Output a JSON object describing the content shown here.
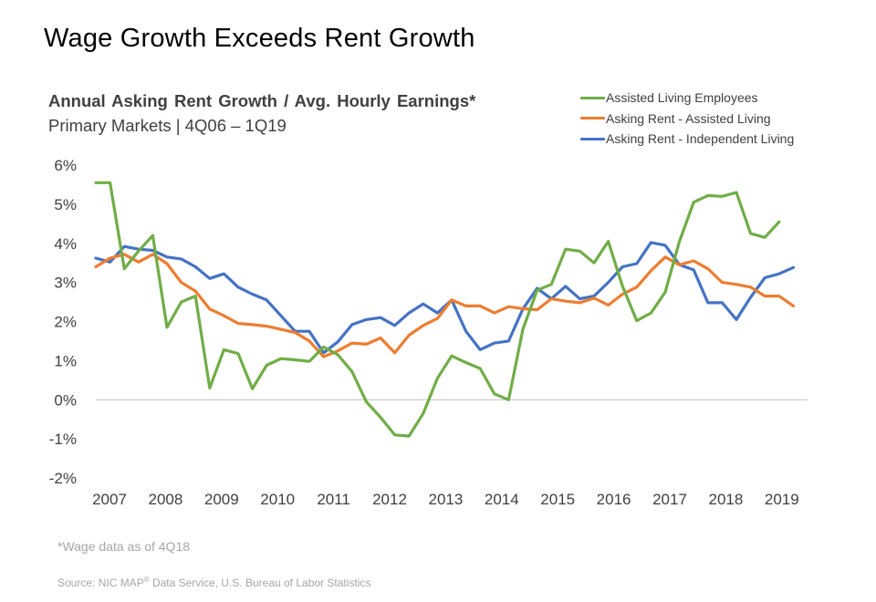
{
  "header": {
    "title": "Wage Growth Exceeds Rent Growth"
  },
  "chart_data": {
    "type": "line",
    "title": "Annual Asking Rent Growth / Avg. Hourly Earnings*",
    "subtitle": "Primary Markets | 4Q06 – 1Q19",
    "xlabel": "",
    "ylabel": "",
    "ylim": [
      -2,
      6
    ],
    "y_ticks": [
      "6%",
      "5%",
      "4%",
      "3%",
      "2%",
      "1%",
      "0%",
      "-1%",
      "-2%"
    ],
    "x_ticks": [
      "2007",
      "2008",
      "2009",
      "2010",
      "2011",
      "2012",
      "2013",
      "2014",
      "2015",
      "2016",
      "2017",
      "2018",
      "2019"
    ],
    "x_start": "4Q06",
    "legend_position": "top-right",
    "grid": false,
    "series": [
      {
        "name": "Assisted Living Employees",
        "color": "#70ad47",
        "values": [
          5.55,
          5.55,
          3.35,
          3.8,
          4.2,
          1.85,
          2.5,
          2.65,
          0.3,
          1.28,
          1.18,
          0.28,
          0.88,
          1.05,
          1.02,
          0.98,
          1.35,
          1.15,
          0.72,
          -0.05,
          -0.45,
          -0.9,
          -0.93,
          -0.35,
          0.55,
          1.12,
          0.95,
          0.8,
          0.15,
          0.0,
          1.8,
          2.8,
          2.95,
          3.85,
          3.8,
          3.5,
          4.05,
          2.9,
          2.02,
          2.22,
          2.75,
          4.05,
          5.05,
          5.22,
          5.2,
          5.3,
          4.25,
          4.15,
          4.55
        ]
      },
      {
        "name": "Asking Rent - Assisted Living",
        "color": "#ed7d31",
        "values": [
          3.4,
          3.62,
          3.72,
          3.52,
          3.72,
          3.48,
          3.0,
          2.78,
          2.32,
          2.15,
          1.95,
          1.92,
          1.88,
          1.8,
          1.72,
          1.5,
          1.1,
          1.25,
          1.45,
          1.42,
          1.58,
          1.2,
          1.65,
          1.9,
          2.08,
          2.55,
          2.4,
          2.4,
          2.22,
          2.38,
          2.33,
          2.3,
          2.58,
          2.52,
          2.48,
          2.6,
          2.42,
          2.7,
          2.88,
          3.3,
          3.65,
          3.45,
          3.55,
          3.35,
          3.0,
          2.95,
          2.88,
          2.65,
          2.65,
          2.4
        ]
      },
      {
        "name": "Asking Rent - Independent Living",
        "color": "#4472c4",
        "values": [
          3.62,
          3.52,
          3.92,
          3.85,
          3.82,
          3.65,
          3.6,
          3.4,
          3.1,
          3.22,
          2.88,
          2.7,
          2.55,
          2.15,
          1.75,
          1.75,
          1.2,
          1.48,
          1.92,
          2.05,
          2.1,
          1.9,
          2.22,
          2.45,
          2.22,
          2.55,
          1.75,
          1.28,
          1.45,
          1.5,
          2.32,
          2.85,
          2.58,
          2.9,
          2.58,
          2.65,
          3.0,
          3.4,
          3.48,
          4.02,
          3.95,
          3.45,
          3.32,
          2.48,
          2.48,
          2.05,
          2.62,
          3.12,
          3.22,
          3.38
        ]
      }
    ]
  },
  "footnote": "*Wage data as of 4Q18",
  "source": {
    "prefix": "Source: NIC MAP",
    "mark": "®",
    "suffix": " Data Service, U.S. Bureau of Labor Statistics"
  }
}
